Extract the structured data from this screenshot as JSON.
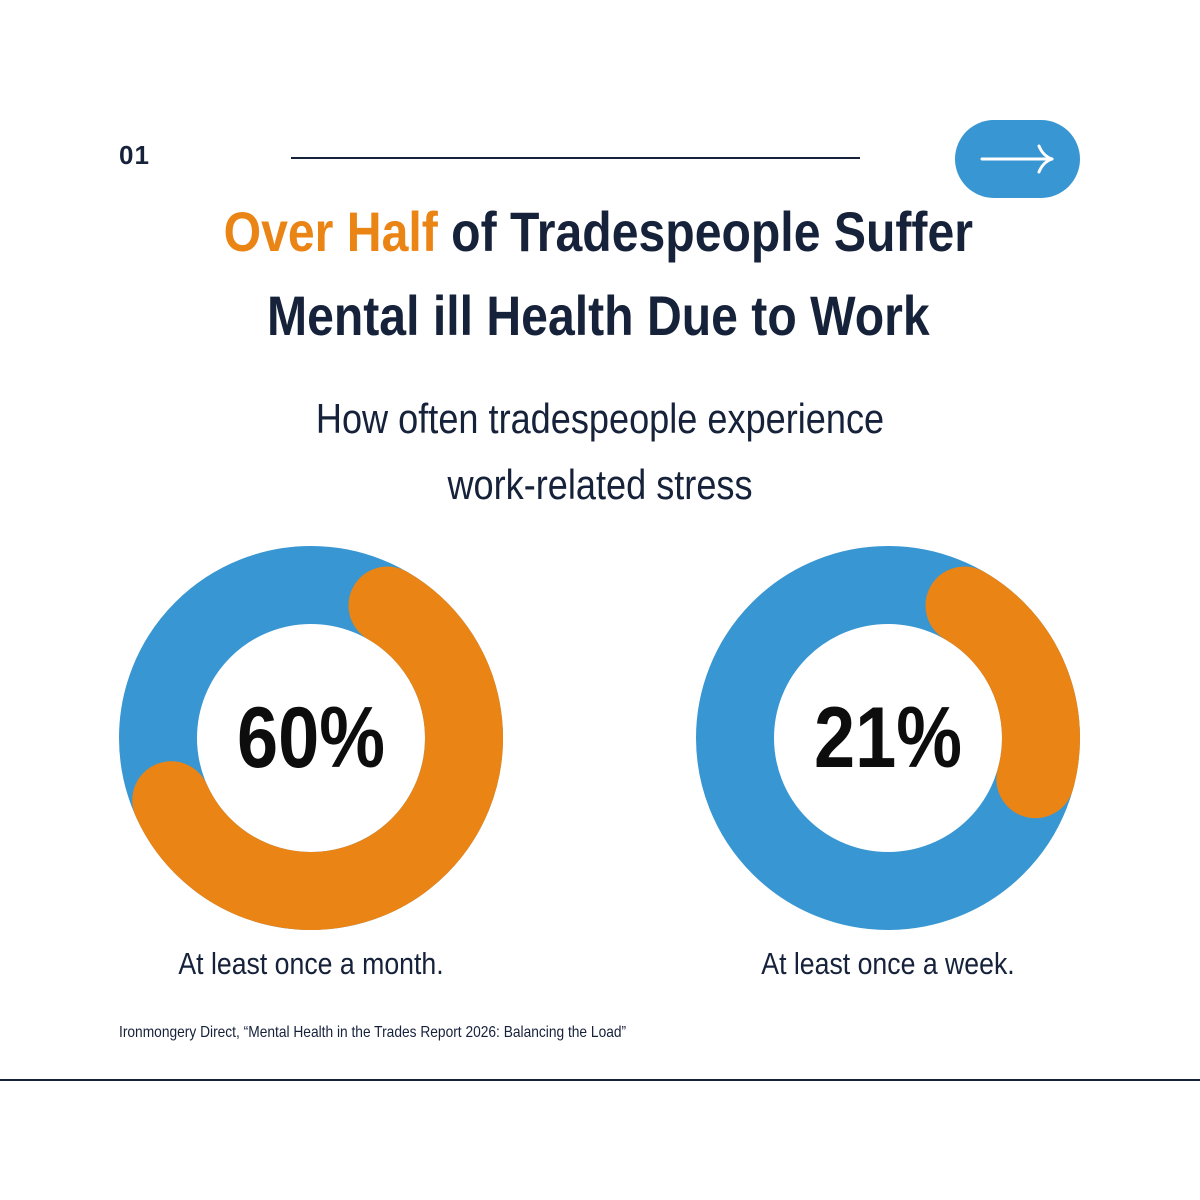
{
  "page_number": "01",
  "nav": {
    "next_icon": "arrow-right-icon"
  },
  "headline": {
    "accent": "Over Half",
    "rest_line1": " of Tradespeople Suffer",
    "line2": "Mental ill Health Due to Work"
  },
  "subtitle": {
    "line1": "How often tradespeople experience",
    "line2": "work-related stress"
  },
  "colors": {
    "accent_orange": "#ea8415",
    "ring_blue": "#3896d2",
    "text_navy": "#16213a"
  },
  "chart_data": [
    {
      "type": "pie",
      "value": 60,
      "label": "60%",
      "caption": "At least once a month."
    },
    {
      "type": "pie",
      "value": 21,
      "label": "21%",
      "caption": "At least once a week."
    }
  ],
  "source": "Ironmongery Direct, “Mental Health in the Trades Report 2026: Balancing the Load”"
}
